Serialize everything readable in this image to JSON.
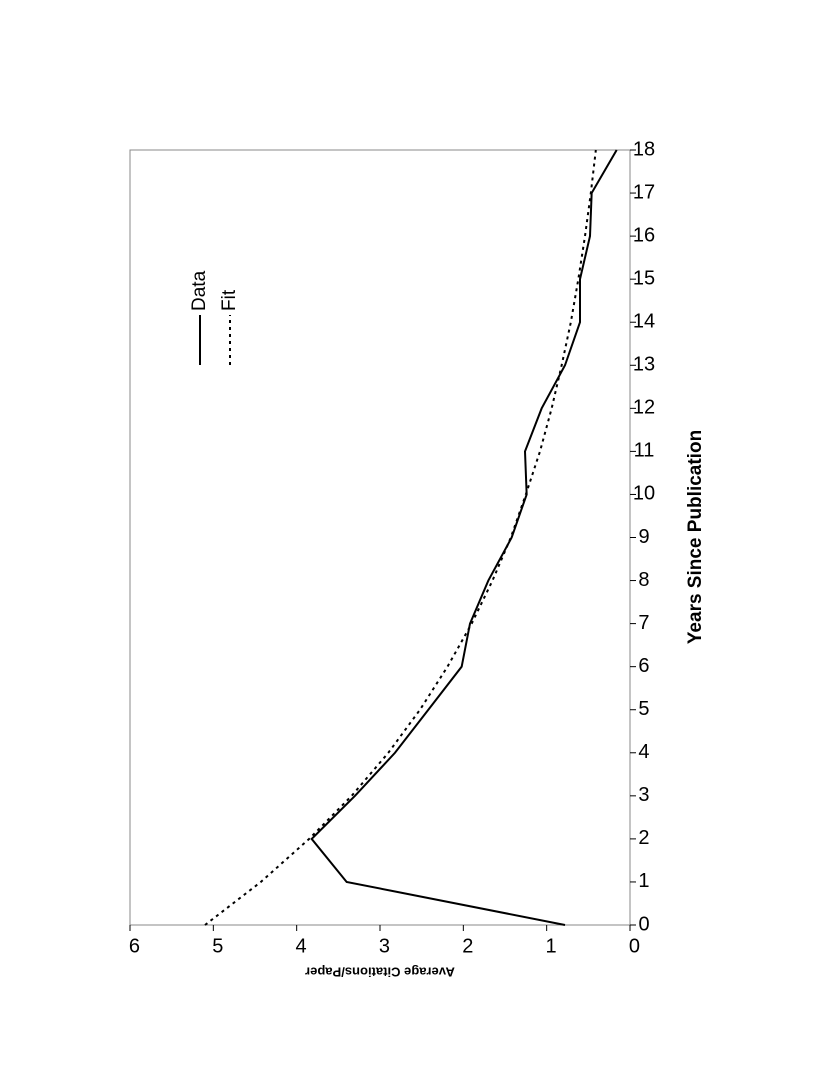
{
  "chart_data": {
    "type": "line",
    "x_label": "Years Since Publication",
    "y_label": "Average Citations/Paper",
    "x": [
      0,
      1,
      2,
      3,
      4,
      5,
      6,
      7,
      8,
      9,
      10,
      11,
      12,
      13,
      14,
      15,
      16,
      17,
      18
    ],
    "series": [
      {
        "name": "Data",
        "color": "#000000",
        "dash": "solid",
        "values": [
          0.78,
          3.4,
          3.82,
          3.3,
          2.82,
          2.42,
          2.02,
          1.92,
          1.7,
          1.42,
          1.24,
          1.26,
          1.06,
          0.78,
          0.6,
          0.6,
          0.48,
          0.46,
          0.16
        ]
      },
      {
        "name": "Fit",
        "color": "#000000",
        "dash": "dotted",
        "values": [
          5.1,
          4.43,
          3.85,
          3.34,
          2.9,
          2.52,
          2.19,
          1.9,
          1.65,
          1.43,
          1.25,
          1.08,
          0.94,
          0.82,
          0.71,
          0.62,
          0.54,
          0.47,
          0.41
        ]
      }
    ],
    "xlim": [
      0,
      18
    ],
    "xticks": [
      0,
      1,
      2,
      3,
      4,
      5,
      6,
      7,
      8,
      9,
      10,
      11,
      12,
      13,
      14,
      15,
      16,
      17,
      18
    ],
    "ylim": [
      0,
      6
    ],
    "yticks": [
      0,
      1,
      2,
      3,
      4,
      5,
      6
    ],
    "grid": false
  }
}
